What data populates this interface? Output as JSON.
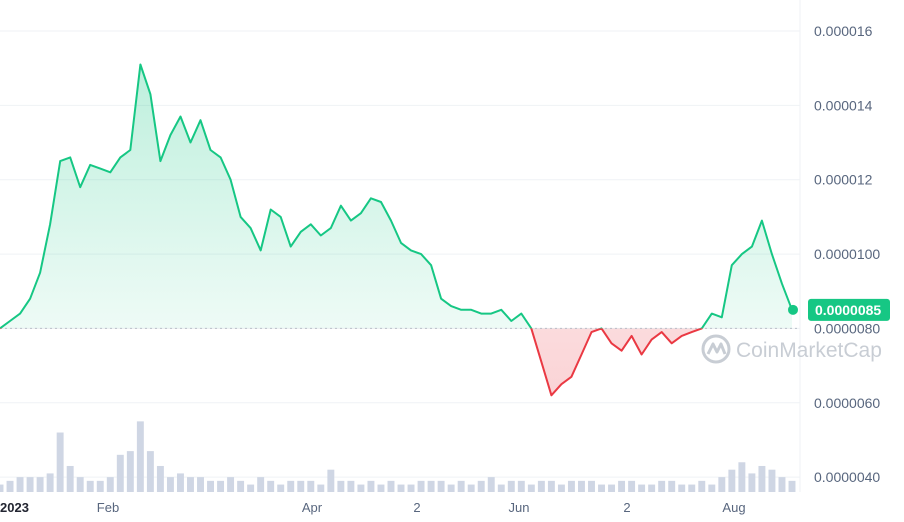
{
  "chart_data": {
    "type": "line",
    "ylim": [
      3.6e-06,
      1.67e-05
    ],
    "y_ticks": [
      "0.0000040",
      "0.0000060",
      "0.0000080",
      "0.0000100",
      "0.000012",
      "0.000014",
      "0.000016"
    ],
    "y_tick_values": [
      4e-06,
      6e-06,
      8e-06,
      1e-05,
      1.2e-05,
      1.4e-05,
      1.6e-05
    ],
    "x_ticks": [
      {
        "label": "2023",
        "bold": true
      },
      {
        "label": "Feb",
        "bold": false
      },
      {
        "label": "Apr",
        "bold": false
      },
      {
        "label": "2",
        "bold": false
      },
      {
        "label": "Jun",
        "bold": false
      },
      {
        "label": "2",
        "bold": false
      },
      {
        "label": "Aug",
        "bold": false
      }
    ],
    "baseline": 8e-06,
    "current_price_label": "0.0000085",
    "current_price": 8.5e-06,
    "watermark": "CoinMarketCap",
    "colors": {
      "up": "#16c784",
      "down": "#ea3943",
      "volume": "#cfd6e4",
      "grid": "#eff2f5",
      "baseline": "#b9bec8"
    },
    "series": [
      {
        "values": [
          8e-06,
          8.2e-06,
          8.4e-06,
          8.8e-06,
          9.5e-06,
          1.08e-05,
          1.25e-05,
          1.26e-05,
          1.18e-05,
          1.24e-05,
          1.23e-05,
          1.22e-05,
          1.26e-05,
          1.28e-05,
          1.51e-05,
          1.43e-05,
          1.25e-05,
          1.32e-05,
          1.37e-05,
          1.3e-05,
          1.36e-05,
          1.28e-05,
          1.26e-05,
          1.2e-05,
          1.1e-05,
          1.07e-05,
          1.01e-05,
          1.12e-05,
          1.1e-05,
          1.02e-05,
          1.06e-05,
          1.08e-05,
          1.05e-05,
          1.07e-05,
          1.13e-05,
          1.09e-05,
          1.11e-05,
          1.15e-05,
          1.14e-05,
          1.09e-05,
          1.03e-05,
          1.01e-05,
          1e-05,
          9.7e-06,
          8.8e-06,
          8.6e-06,
          8.5e-06,
          8.5e-06,
          8.4e-06,
          8.4e-06,
          8.5e-06,
          8.2e-06,
          8.4e-06,
          8e-06,
          7.1e-06,
          6.2e-06,
          6.5e-06,
          6.7e-06,
          7.3e-06,
          7.9e-06,
          8e-06,
          7.6e-06,
          7.4e-06,
          7.8e-06,
          7.3e-06,
          7.7e-06,
          7.9e-06,
          7.6e-06,
          7.8e-06,
          7.9e-06,
          8e-06,
          8.4e-06,
          8.3e-06,
          9.7e-06,
          1e-05,
          1.02e-05,
          1.09e-05,
          1e-05,
          9.2e-06,
          8.5e-06
        ],
        "volumes": [
          3.8e-06,
          3.9e-06,
          4e-06,
          4e-06,
          4e-06,
          4.1e-06,
          5.2e-06,
          4.3e-06,
          4e-06,
          3.9e-06,
          3.9e-06,
          4e-06,
          4.6e-06,
          4.7e-06,
          5.5e-06,
          4.7e-06,
          4.3e-06,
          4e-06,
          4.1e-06,
          4e-06,
          4e-06,
          3.9e-06,
          3.9e-06,
          4e-06,
          3.9e-06,
          3.8e-06,
          4e-06,
          3.9e-06,
          3.8e-06,
          3.9e-06,
          3.9e-06,
          3.9e-06,
          3.8e-06,
          4.2e-06,
          3.9e-06,
          3.9e-06,
          3.8e-06,
          3.9e-06,
          3.8e-06,
          3.9e-06,
          3.8e-06,
          3.8e-06,
          3.9e-06,
          3.9e-06,
          3.9e-06,
          3.8e-06,
          3.9e-06,
          3.8e-06,
          3.9e-06,
          4e-06,
          3.8e-06,
          3.9e-06,
          3.9e-06,
          3.8e-06,
          3.9e-06,
          3.9e-06,
          3.8e-06,
          3.9e-06,
          3.9e-06,
          3.9e-06,
          3.8e-06,
          3.8e-06,
          3.9e-06,
          3.9e-06,
          3.8e-06,
          3.8e-06,
          3.9e-06,
          3.9e-06,
          3.8e-06,
          3.8e-06,
          3.9e-06,
          3.8e-06,
          4e-06,
          4.2e-06,
          4.4e-06,
          4.1e-06,
          4.3e-06,
          4.2e-06,
          4e-06,
          3.9e-06
        ]
      }
    ],
    "grid": true
  }
}
